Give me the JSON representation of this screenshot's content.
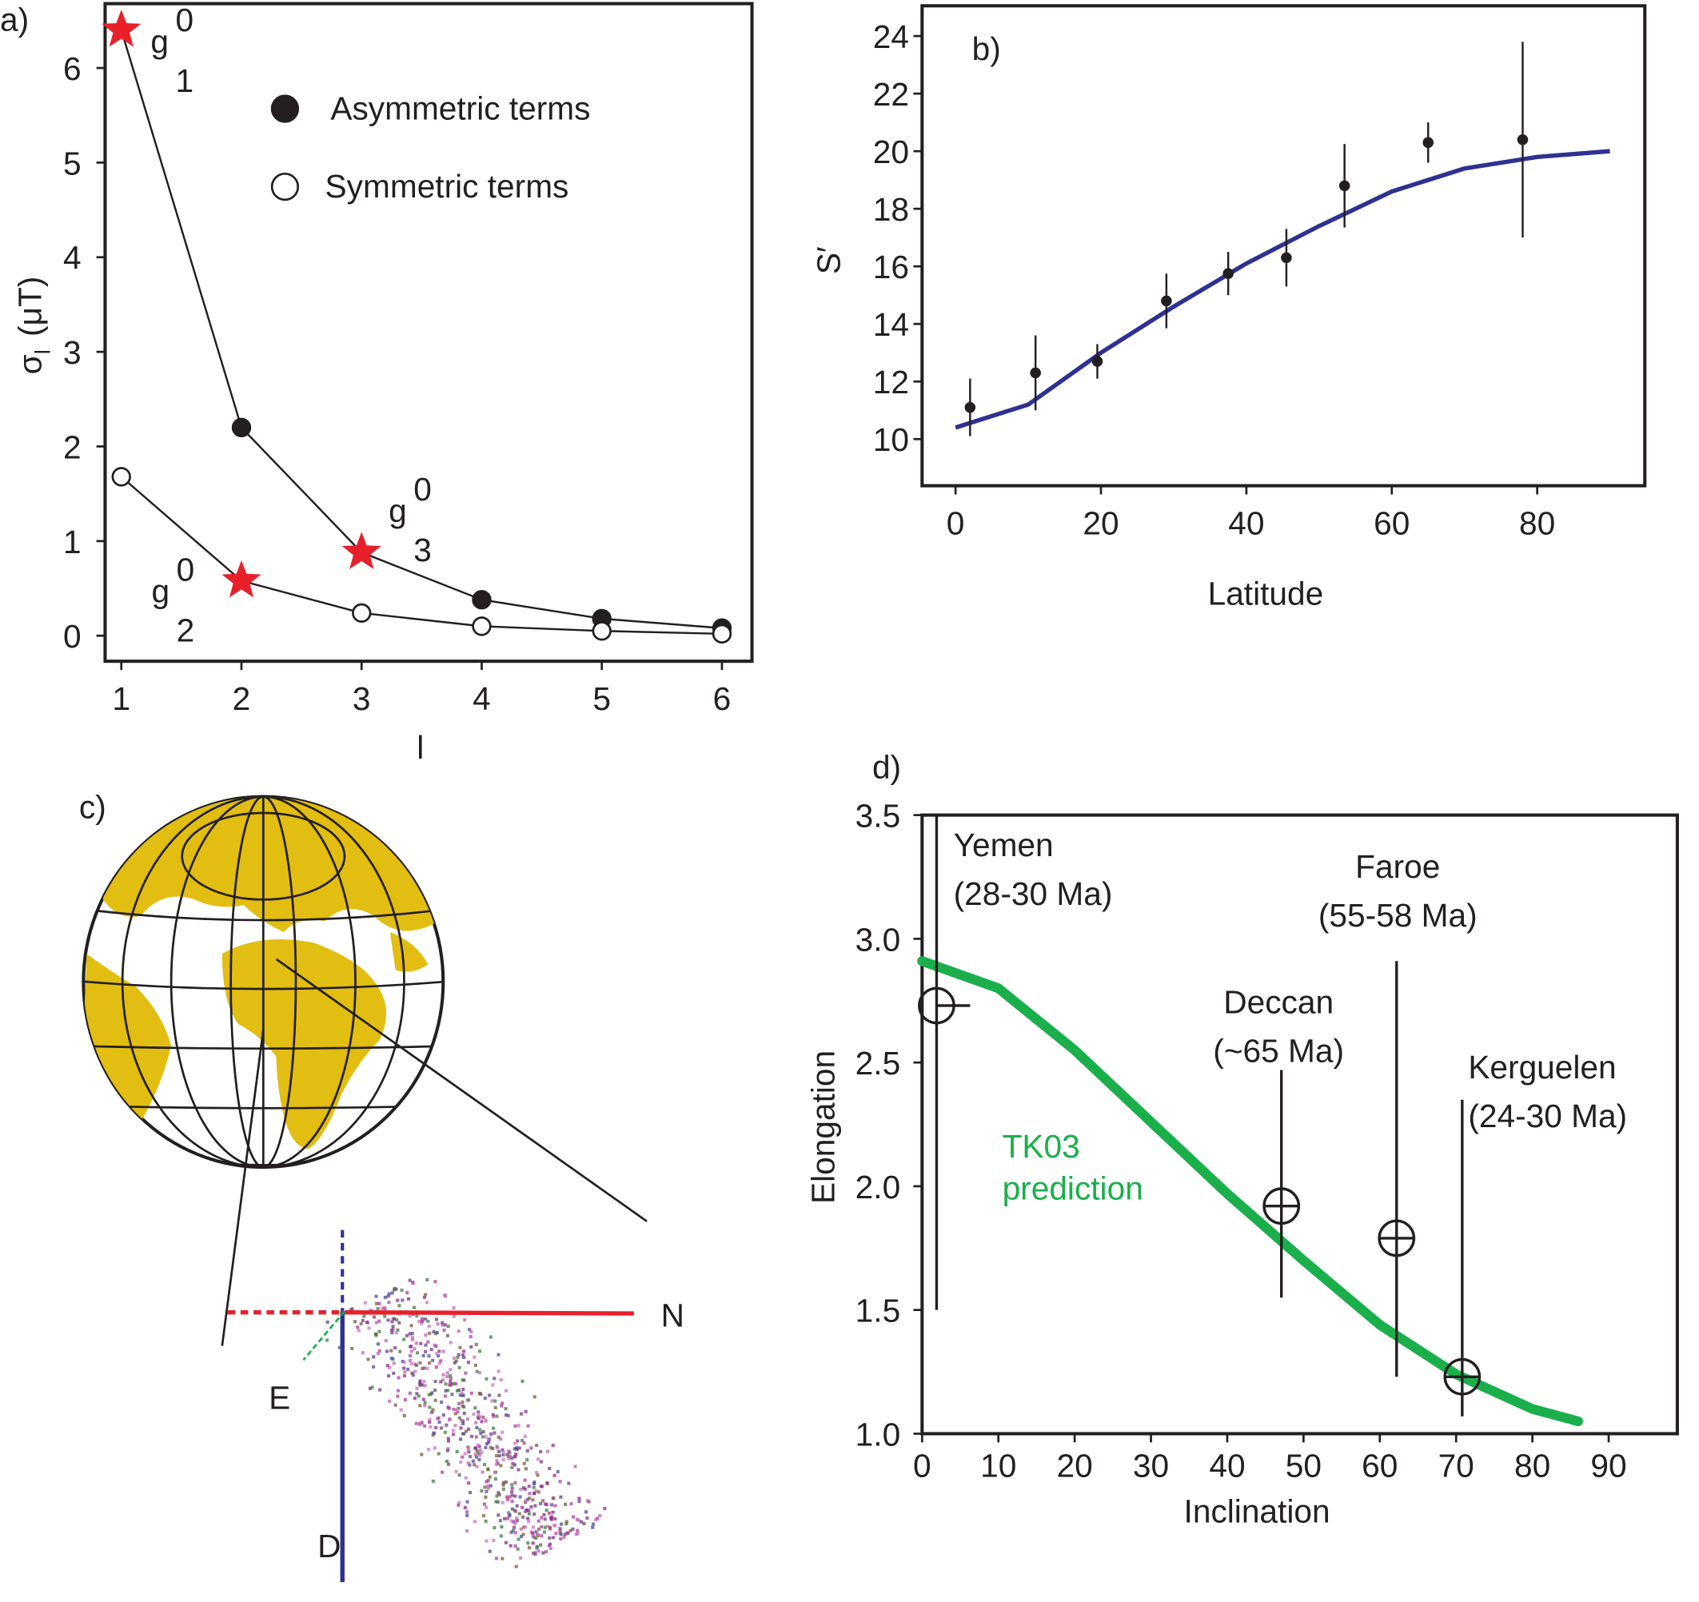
{
  "chart_data": [
    {
      "type": "line",
      "panel_label": "a)",
      "xlabel": "l",
      "ylabel": "σ",
      "ylabel_sub": "l",
      "ylabel_unit": "(μT)",
      "x": [
        1,
        2,
        3,
        4,
        5,
        6
      ],
      "xlim": [
        0.865,
        6.25
      ],
      "xticks": [
        1,
        2,
        3,
        4,
        5,
        6
      ],
      "ylim": [
        -0.27,
        6.68
      ],
      "yticks": [
        0,
        1,
        2,
        3,
        4,
        5,
        6
      ],
      "legend": "upper right",
      "highlight_color": "#e8202a",
      "series": [
        {
          "name": "Asymmetric terms",
          "marker": "filled",
          "color": "#231f20",
          "values": [
            6.4,
            2.2,
            0.88,
            0.38,
            0.18,
            0.08
          ],
          "highlight": [
            0,
            2
          ],
          "point_labels": [
            {
              "base": "g",
              "sup": "0",
              "sub": "1"
            },
            null,
            {
              "base": "g",
              "sup": "0",
              "sub": "3"
            },
            null,
            null,
            null
          ]
        },
        {
          "name": "Symmetric terms",
          "marker": "open",
          "color": "#231f20",
          "values": [
            1.68,
            0.58,
            0.24,
            0.1,
            0.05,
            0.02
          ],
          "highlight": [
            1
          ],
          "point_labels": [
            null,
            {
              "base": "g",
              "sup": "0",
              "sub": "2"
            },
            null,
            null,
            null,
            null
          ]
        }
      ]
    },
    {
      "type": "scatter",
      "panel_label": "b)",
      "xlabel": "Latitude",
      "ylabel": "S′",
      "xlim": [
        -4.6,
        94.8
      ],
      "xticks": [
        0,
        20,
        40,
        60,
        80
      ],
      "ylim": [
        8.38,
        25.05
      ],
      "yticks": [
        10,
        12,
        14,
        16,
        18,
        20,
        22,
        24
      ],
      "points": {
        "color": "#231f20",
        "x": [
          2,
          11,
          19.5,
          29,
          37.5,
          45.5,
          53.5,
          65,
          78
        ],
        "values": [
          11.1,
          12.3,
          12.7,
          14.8,
          15.75,
          16.3,
          18.8,
          20.3,
          20.4
        ],
        "errors": [
          1,
          1.3,
          0.6,
          0.95,
          0.75,
          1,
          1.45,
          0.7,
          3.4
        ]
      },
      "curve": {
        "color": "#2e3192",
        "x": [
          0,
          10,
          20,
          30,
          40,
          50,
          60,
          70,
          80,
          90
        ],
        "values": [
          10.4,
          11.2,
          13,
          14.6,
          16.1,
          17.4,
          18.6,
          19.4,
          19.8,
          20
        ]
      }
    },
    {
      "type": "scatter",
      "panel_label": "d)",
      "xlabel": "Inclination",
      "ylabel": "Elongation",
      "xlim": [
        0,
        99
      ],
      "xticks": [
        0,
        10,
        20,
        30,
        40,
        50,
        60,
        70,
        80,
        90
      ],
      "ylim": [
        1,
        3.5
      ],
      "yticks": [
        {
          "value": 1,
          "label": "1.0"
        },
        1.5,
        {
          "value": 2,
          "label": "2.0"
        },
        2.5,
        {
          "value": 3,
          "label": "3.0"
        },
        3.5
      ],
      "points": {
        "color": "#231f20",
        "names": [
          "Yemen",
          "Deccan",
          "Faroe",
          "Kerguelen"
        ],
        "ages": [
          "(28-30 Ma)",
          "(~65 Ma)",
          "(55-58 Ma)",
          "(24-30 Ma)"
        ],
        "x": [
          1.9,
          47.1,
          62.2,
          70.8
        ],
        "values": [
          2.73,
          1.92,
          1.79,
          1.23
        ],
        "y_low": [
          1.5,
          1.55,
          1.23,
          1.07
        ],
        "y_high": [
          3.5,
          2.47,
          2.91,
          2.35
        ],
        "x_high": [
          6.3,
          null,
          null,
          null
        ]
      },
      "curve": {
        "color": "#1aaf4b",
        "label": [
          "TK03",
          "prediction"
        ],
        "x": [
          0,
          10,
          20,
          30,
          40,
          50,
          60,
          70,
          80,
          86
        ],
        "values": [
          2.91,
          2.8,
          2.55,
          2.26,
          1.97,
          1.7,
          1.44,
          1.24,
          1.1,
          1.05
        ]
      }
    }
  ],
  "diagram": {
    "panel_label": "c)",
    "axis_labels": [
      "N",
      "E",
      "D"
    ]
  }
}
